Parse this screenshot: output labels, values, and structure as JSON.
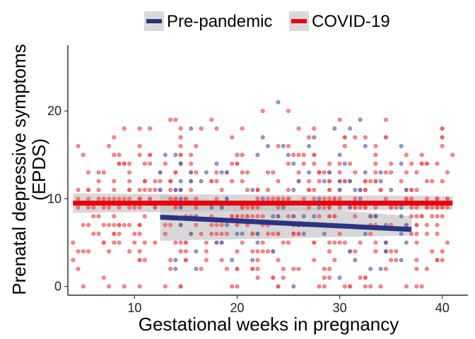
{
  "chart_data": {
    "type": "scatter",
    "title": "",
    "xlabel": "Gestational weeks in pregnancy",
    "ylabel": [
      "Prenatal depressive symptoms",
      "(EPDS)"
    ],
    "xlim": [
      3.5,
      42.5
    ],
    "ylim": [
      -1,
      27.5
    ],
    "xticks": [
      10,
      20,
      30,
      40
    ],
    "yticks": [
      0,
      10,
      20
    ],
    "grid": false,
    "legend_position": "top",
    "series": [
      {
        "name": "Pre-pandemic",
        "color": "#2B3480",
        "point_color": "#5B66A8",
        "trend": {
          "x": [
            12.5,
            37
          ],
          "y": [
            7.9,
            6.5
          ]
        },
        "ci_band": {
          "x": [
            12.5,
            37
          ],
          "lower": [
            5.2,
            5.8
          ],
          "upper": [
            10.4,
            8.0
          ]
        }
      },
      {
        "name": "COVID-19",
        "color": "#E8000B",
        "point_color": "#F04A50",
        "trend": {
          "x": [
            4,
            41
          ],
          "y": [
            9.5,
            9.5
          ]
        },
        "ci_band": {
          "x": [
            4,
            41
          ],
          "lower": [
            8.4,
            8.8
          ],
          "upper": [
            10.6,
            10.3
          ]
        }
      }
    ]
  }
}
